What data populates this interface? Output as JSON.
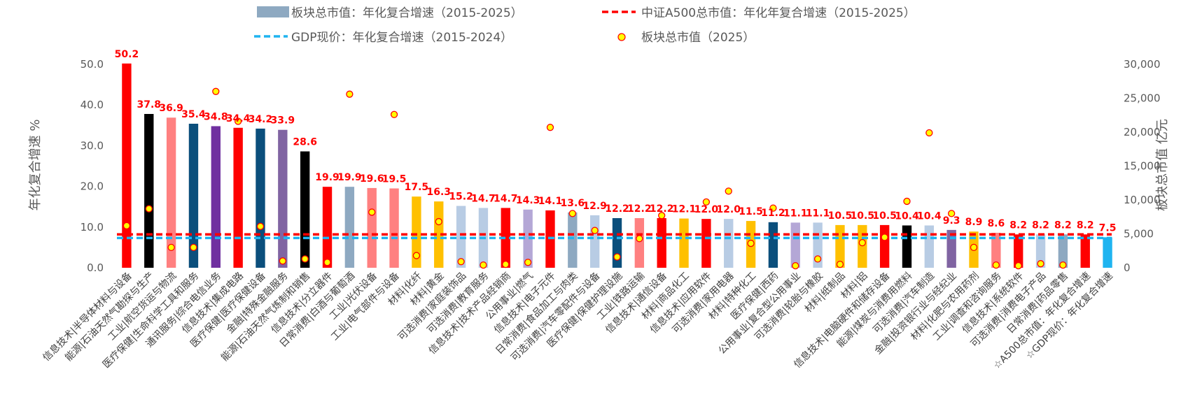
{
  "chart_data": {
    "type": "bar",
    "legend": {
      "bar": "板块总市值：年化复合增速（2015-2025）",
      "a500": "中证A500总市值：年化年复合增速（2015-2025）",
      "gdp": "GDP现价：年化复合增速（2015-2024）",
      "dots": "板块总市值（2025）"
    },
    "ylabel_left": "年化复合增速 %",
    "ylabel_right": "板块总市值 亿元",
    "y_left_range": [
      0,
      50
    ],
    "y_left_ticks": [
      "0.0",
      "10.0",
      "20.0",
      "30.0",
      "40.0",
      "50.0"
    ],
    "y_right_range": [
      0,
      30000
    ],
    "y_right_ticks": [
      "0",
      "5,000",
      "10,000",
      "15,000",
      "20,000",
      "25,000",
      "30,000"
    ],
    "a500_value": 8.2,
    "gdp_value": 7.5,
    "categories": [
      "信息技术|半导体材料与设备",
      "能源|石油天然气勘探与生产",
      "工业|航空货运与物流",
      "医疗保健|生命科学工具和服务",
      "通讯服务|综合电信业务",
      "信息技术|集成电路",
      "医疗保健|医疗保健设备",
      "金融|特殊金融服务",
      "能源|石油天然气炼制和销售",
      "信息技术|分立器件",
      "日常消费|白酒与葡萄酒",
      "工业|光伏设备",
      "工业|电气部件与设备",
      "材料|化纤",
      "材料|黄金",
      "可选消费|家庭装饰品",
      "可选消费|教育服务",
      "信息技术|技术产品经销商",
      "公用事业|燃气",
      "信息技术|电子元件",
      "日常消费|食品加工与肉类",
      "可选消费|汽车零配件与设备",
      "医疗保健|保健护理设施",
      "工业|铁路运输",
      "信息技术|通信设备",
      "材料|商品化工",
      "信息技术|应用软件",
      "可选消费|家用电器",
      "材料|特种化工",
      "医疗保健|西药",
      "公用事业|复合型公用事业",
      "可选消费|轮胎与橡胶",
      "材料|纸制品",
      "材料|铝",
      "信息技术|电脑硬件和储存设备",
      "能源|煤炭与消费用燃料",
      "可选消费|汽车制造",
      "金融|投资银行业与经纪业",
      "材料|化肥与农用药剂",
      "工业|调查和咨询服务",
      "信息技术|系统软件",
      "可选消费|消费电子产品",
      "日常消费|药品零售",
      "☆A500总市值：年化复合增速",
      "☆GDP现价：年化复合增速"
    ],
    "value_labels": [
      "50.2",
      "37.8",
      "36.9",
      "35.4",
      "34.8",
      "34.4",
      "34.2",
      "33.9",
      "28.6",
      "19.9",
      "19.9",
      "19.6",
      "19.5",
      "17.5",
      "16.3",
      "15.2",
      "14.7",
      "14.7",
      "14.3",
      "14.1",
      "13.6",
      "12.9",
      "12.2",
      "12.2",
      "12.2",
      "12.1",
      "12.0",
      "12.0",
      "11.5",
      "11.2",
      "11.1",
      "11.1",
      "10.5",
      "10.5",
      "10.5",
      "10.4",
      "10.4",
      "9.3",
      "8.9",
      "8.6",
      "8.2",
      "8.2",
      "8.2",
      "8.2",
      "7.5"
    ],
    "series": [
      {
        "name": "板块总市值：年化复合增速（2015-2025）",
        "values": [
          50.2,
          37.8,
          36.9,
          35.4,
          34.8,
          34.4,
          34.2,
          33.9,
          28.6,
          19.9,
          19.9,
          19.6,
          19.5,
          17.5,
          16.3,
          15.2,
          14.7,
          14.7,
          14.3,
          14.1,
          13.6,
          12.9,
          12.2,
          12.2,
          12.2,
          12.1,
          12.0,
          12.0,
          11.5,
          11.2,
          11.1,
          11.1,
          10.5,
          10.5,
          10.5,
          10.4,
          10.4,
          9.3,
          8.9,
          8.6,
          8.2,
          8.2,
          8.2,
          8.2,
          7.5
        ],
        "colors": [
          "#ff0000",
          "#000000",
          "#ff8080",
          "#0b4f7c",
          "#7030a0",
          "#ff0000",
          "#0b4f7c",
          "#8064a2",
          "#000000",
          "#ff0000",
          "#8ea9c1",
          "#ff8080",
          "#ff8080",
          "#ffc000",
          "#ffc000",
          "#b8cce4",
          "#b8cce4",
          "#ff0000",
          "#b4a7d6",
          "#ff0000",
          "#8ea9c1",
          "#b8cce4",
          "#0b4f7c",
          "#ff8080",
          "#ff0000",
          "#ffc000",
          "#ff0000",
          "#b8cce4",
          "#ffc000",
          "#0b4f7c",
          "#b4a7d6",
          "#b8cce4",
          "#ffc000",
          "#ffc000",
          "#ff0000",
          "#000000",
          "#b8cce4",
          "#8064a2",
          "#ffc000",
          "#ff8080",
          "#ff0000",
          "#b8cce4",
          "#8ea9c1",
          "#ff0000",
          "#1fb4f0"
        ]
      },
      {
        "name": "板块总市值（2025）",
        "values": [
          6200,
          8700,
          3000,
          3000,
          26000,
          21600,
          6100,
          1000,
          1300,
          800,
          25600,
          8200,
          22600,
          1800,
          6800,
          900,
          400,
          500,
          800,
          20700,
          8000,
          5500,
          1600,
          4300,
          7700,
          null,
          9700,
          11300,
          3600,
          8800,
          300,
          1300,
          500,
          3700,
          4500,
          9800,
          19900,
          8000,
          3000,
          400,
          300,
          600,
          400,
          null,
          null
        ]
      }
    ]
  }
}
